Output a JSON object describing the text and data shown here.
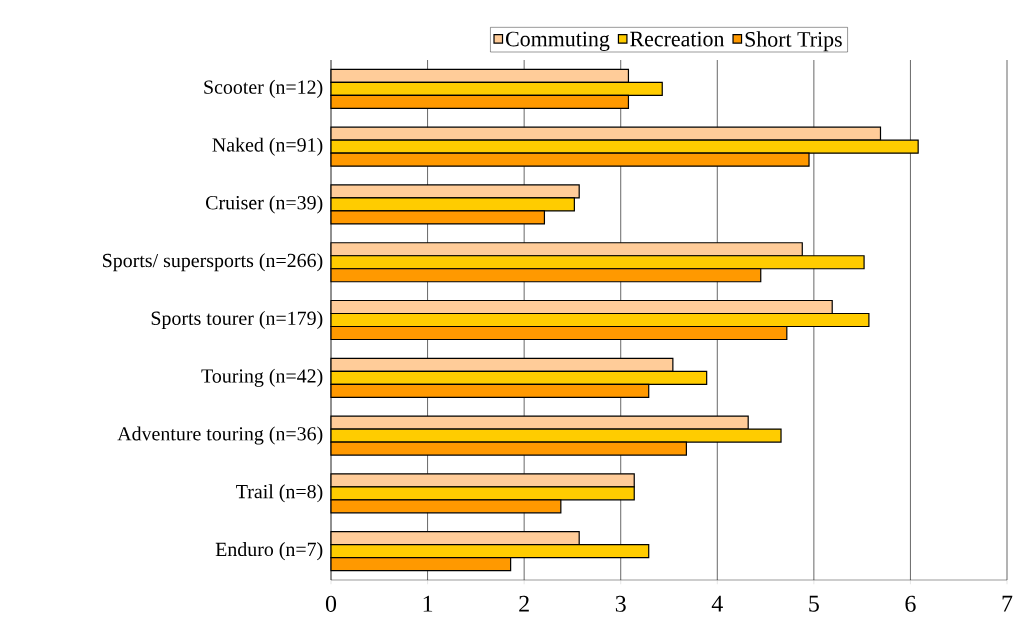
{
  "chart_data": {
    "type": "bar",
    "orientation": "horizontal",
    "categories": [
      "Scooter (n=12)",
      "Naked (n=91)",
      "Cruiser (n=39)",
      "Sports/ supersports (n=266)",
      "Sports tourer (n=179)",
      "Touring (n=42)",
      "Adventure touring (n=36)",
      "Trail (n=8)",
      "Enduro (n=7)"
    ],
    "series": [
      {
        "name": "Commuting",
        "color": "#ffcc99",
        "values": [
          3.08,
          5.69,
          2.57,
          4.88,
          5.19,
          3.54,
          4.32,
          3.14,
          2.57
        ]
      },
      {
        "name": "Recreation",
        "color": "#ffcc00",
        "values": [
          3.43,
          6.08,
          2.52,
          5.52,
          5.57,
          3.89,
          4.66,
          3.14,
          3.29
        ]
      },
      {
        "name": "Short Trips",
        "color": "#ff9900",
        "values": [
          3.08,
          4.95,
          2.21,
          4.45,
          4.72,
          3.29,
          3.68,
          2.38,
          1.86
        ]
      }
    ],
    "xlim": [
      0,
      7
    ],
    "xticks": [
      0,
      1,
      2,
      3,
      4,
      5,
      6,
      7
    ],
    "grid": "x",
    "legend": "top"
  }
}
